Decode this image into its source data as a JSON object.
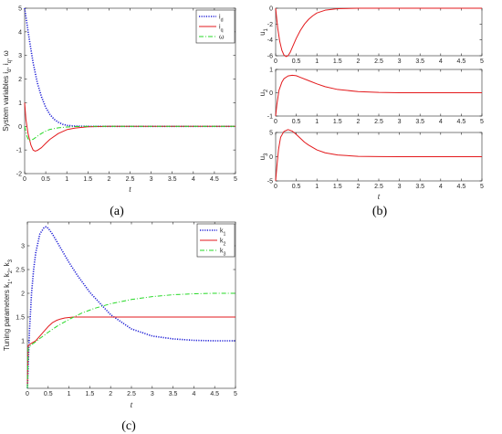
{
  "colors": {
    "blue": "#1f1fd6",
    "red": "#e3191c",
    "green": "#26d926",
    "axis": "#262626"
  },
  "captions": {
    "a": "(a)",
    "b": "(b)",
    "c": "(c)"
  },
  "chart_data": [
    {
      "id": "a",
      "type": "line",
      "xlabel": "t",
      "ylabel": "System variables  i_d, i_q, ω",
      "xlim": [
        0,
        5
      ],
      "ylim": [
        -2,
        5
      ],
      "xticks": [
        0,
        0.5,
        1,
        1.5,
        2,
        2.5,
        3,
        3.5,
        4,
        4.5,
        5
      ],
      "yticks": [
        -2,
        -1,
        0,
        1,
        2,
        3,
        4,
        5
      ],
      "legend_position": "top-right",
      "series": [
        {
          "name": "i_d",
          "color_key": "blue",
          "style": "dotted",
          "x": [
            0,
            0.1,
            0.2,
            0.3,
            0.4,
            0.5,
            0.6,
            0.7,
            0.8,
            0.9,
            1.0,
            1.2,
            1.5,
            2,
            3,
            5
          ],
          "y": [
            5,
            3.8,
            2.7,
            1.85,
            1.25,
            0.8,
            0.5,
            0.3,
            0.17,
            0.09,
            0.04,
            0.01,
            0,
            0,
            0,
            0
          ]
        },
        {
          "name": "i_q",
          "color_key": "red",
          "style": "solid",
          "x": [
            0,
            0.03,
            0.08,
            0.15,
            0.2,
            0.25,
            0.3,
            0.4,
            0.5,
            0.6,
            0.8,
            1.0,
            1.2,
            1.5,
            2,
            3,
            5
          ],
          "y": [
            1,
            0.3,
            -0.3,
            -0.8,
            -1.0,
            -1.05,
            -1.02,
            -0.9,
            -0.72,
            -0.55,
            -0.3,
            -0.14,
            -0.07,
            -0.02,
            0,
            0,
            0
          ]
        },
        {
          "name": "ω",
          "color_key": "green",
          "style": "dashdot",
          "x": [
            0,
            0.05,
            0.1,
            0.2,
            0.3,
            0.4,
            0.5,
            0.6,
            0.8,
            1.0,
            1.2,
            1.5,
            2,
            3,
            5
          ],
          "y": [
            0,
            -0.4,
            -0.6,
            -0.55,
            -0.42,
            -0.3,
            -0.2,
            -0.13,
            -0.06,
            -0.03,
            -0.01,
            0,
            0,
            0,
            0
          ]
        }
      ]
    },
    {
      "id": "b1",
      "type": "line",
      "xlabel": "",
      "ylabel": "u_1",
      "xlim": [
        0,
        5
      ],
      "ylim": [
        -6,
        0
      ],
      "xticks": [
        0,
        0.5,
        1,
        1.5,
        2,
        2.5,
        3,
        3.5,
        4,
        4.5,
        5
      ],
      "yticks": [
        -6,
        -4,
        -2,
        0
      ],
      "series": [
        {
          "name": "",
          "color_key": "red",
          "style": "solid",
          "x": [
            0,
            0.05,
            0.1,
            0.15,
            0.2,
            0.25,
            0.3,
            0.35,
            0.4,
            0.5,
            0.6,
            0.7,
            0.8,
            0.9,
            1.0,
            1.2,
            1.5,
            2,
            5
          ],
          "y": [
            0,
            -2.5,
            -4.2,
            -5.3,
            -5.9,
            -6.1,
            -6.0,
            -5.6,
            -5.0,
            -3.8,
            -2.8,
            -2.0,
            -1.4,
            -0.95,
            -0.6,
            -0.25,
            -0.06,
            0,
            0
          ]
        }
      ]
    },
    {
      "id": "b2",
      "type": "line",
      "xlabel": "",
      "ylabel": "u_2",
      "xlim": [
        0,
        5
      ],
      "ylim": [
        -1,
        1
      ],
      "xticks": [
        0,
        0.5,
        1,
        1.5,
        2,
        2.5,
        3,
        3.5,
        4,
        4.5,
        5
      ],
      "yticks": [
        -1,
        0,
        1
      ],
      "series": [
        {
          "name": "",
          "color_key": "red",
          "style": "solid",
          "x": [
            0,
            0.03,
            0.08,
            0.15,
            0.2,
            0.3,
            0.4,
            0.5,
            0.6,
            0.8,
            1.0,
            1.2,
            1.5,
            2,
            2.5,
            3,
            5
          ],
          "y": [
            -1,
            -0.5,
            0.1,
            0.45,
            0.6,
            0.72,
            0.75,
            0.73,
            0.66,
            0.52,
            0.38,
            0.26,
            0.14,
            0.05,
            0.015,
            0,
            0
          ]
        }
      ]
    },
    {
      "id": "b3",
      "type": "line",
      "xlabel": "t",
      "ylabel": "u_3",
      "xlim": [
        0,
        5
      ],
      "ylim": [
        -5,
        5
      ],
      "xticks": [
        0,
        0.5,
        1,
        1.5,
        2,
        2.5,
        3,
        3.5,
        4,
        4.5,
        5
      ],
      "yticks": [
        -5,
        0,
        5
      ],
      "series": [
        {
          "name": "",
          "color_key": "red",
          "style": "solid",
          "x": [
            0,
            0.03,
            0.07,
            0.12,
            0.2,
            0.3,
            0.4,
            0.5,
            0.6,
            0.7,
            0.8,
            1.0,
            1.2,
            1.5,
            2,
            2.5,
            3,
            5
          ],
          "y": [
            -5,
            -2,
            1.5,
            4,
            5.2,
            5.6,
            5.3,
            4.6,
            3.8,
            3.0,
            2.4,
            1.4,
            0.8,
            0.35,
            0.08,
            0.02,
            0,
            0
          ]
        }
      ]
    },
    {
      "id": "c",
      "type": "line",
      "xlabel": "t",
      "ylabel": "Tuning parameters  k_1, k_2, k_3",
      "xlim": [
        0,
        5
      ],
      "ylim": [
        0,
        3.5
      ],
      "xticks": [
        0,
        0.5,
        1,
        1.5,
        2,
        2.5,
        3,
        3.5,
        4,
        4.5,
        5
      ],
      "yticks": [
        1,
        1.5,
        2,
        2.5,
        3
      ],
      "legend_position": "top-right",
      "series": [
        {
          "name": "k_1",
          "color_key": "blue",
          "style": "dotted",
          "x": [
            0,
            0.05,
            0.1,
            0.15,
            0.2,
            0.3,
            0.4,
            0.45,
            0.5,
            0.6,
            0.8,
            1.0,
            1.2,
            1.5,
            2,
            2.5,
            3,
            3.5,
            4,
            4.5,
            5
          ],
          "y": [
            0,
            1.2,
            2.0,
            2.5,
            2.85,
            3.25,
            3.38,
            3.4,
            3.37,
            3.25,
            2.95,
            2.65,
            2.38,
            2.02,
            1.55,
            1.25,
            1.1,
            1.04,
            1.01,
            1.0,
            1.0
          ]
        },
        {
          "name": "k_2",
          "color_key": "red",
          "style": "solid",
          "x": [
            0,
            0.02,
            0.1,
            0.2,
            0.3,
            0.4,
            0.5,
            0.6,
            0.7,
            0.8,
            0.9,
            1.0,
            1.1,
            1.2,
            5
          ],
          "y": [
            0,
            0.9,
            0.95,
            1.0,
            1.1,
            1.2,
            1.3,
            1.38,
            1.43,
            1.46,
            1.48,
            1.49,
            1.5,
            1.5,
            1.5
          ]
        },
        {
          "name": "k_3",
          "color_key": "green",
          "style": "dashdot",
          "x": [
            0,
            0.02,
            0.1,
            0.2,
            0.3,
            0.5,
            0.7,
            1.0,
            1.3,
            1.6,
            2.0,
            2.5,
            3.0,
            3.5,
            4.0,
            4.5,
            5
          ],
          "y": [
            0,
            0.85,
            0.92,
            0.98,
            1.05,
            1.18,
            1.3,
            1.45,
            1.58,
            1.68,
            1.78,
            1.87,
            1.93,
            1.97,
            1.99,
            2.0,
            2.0
          ]
        }
      ]
    }
  ]
}
